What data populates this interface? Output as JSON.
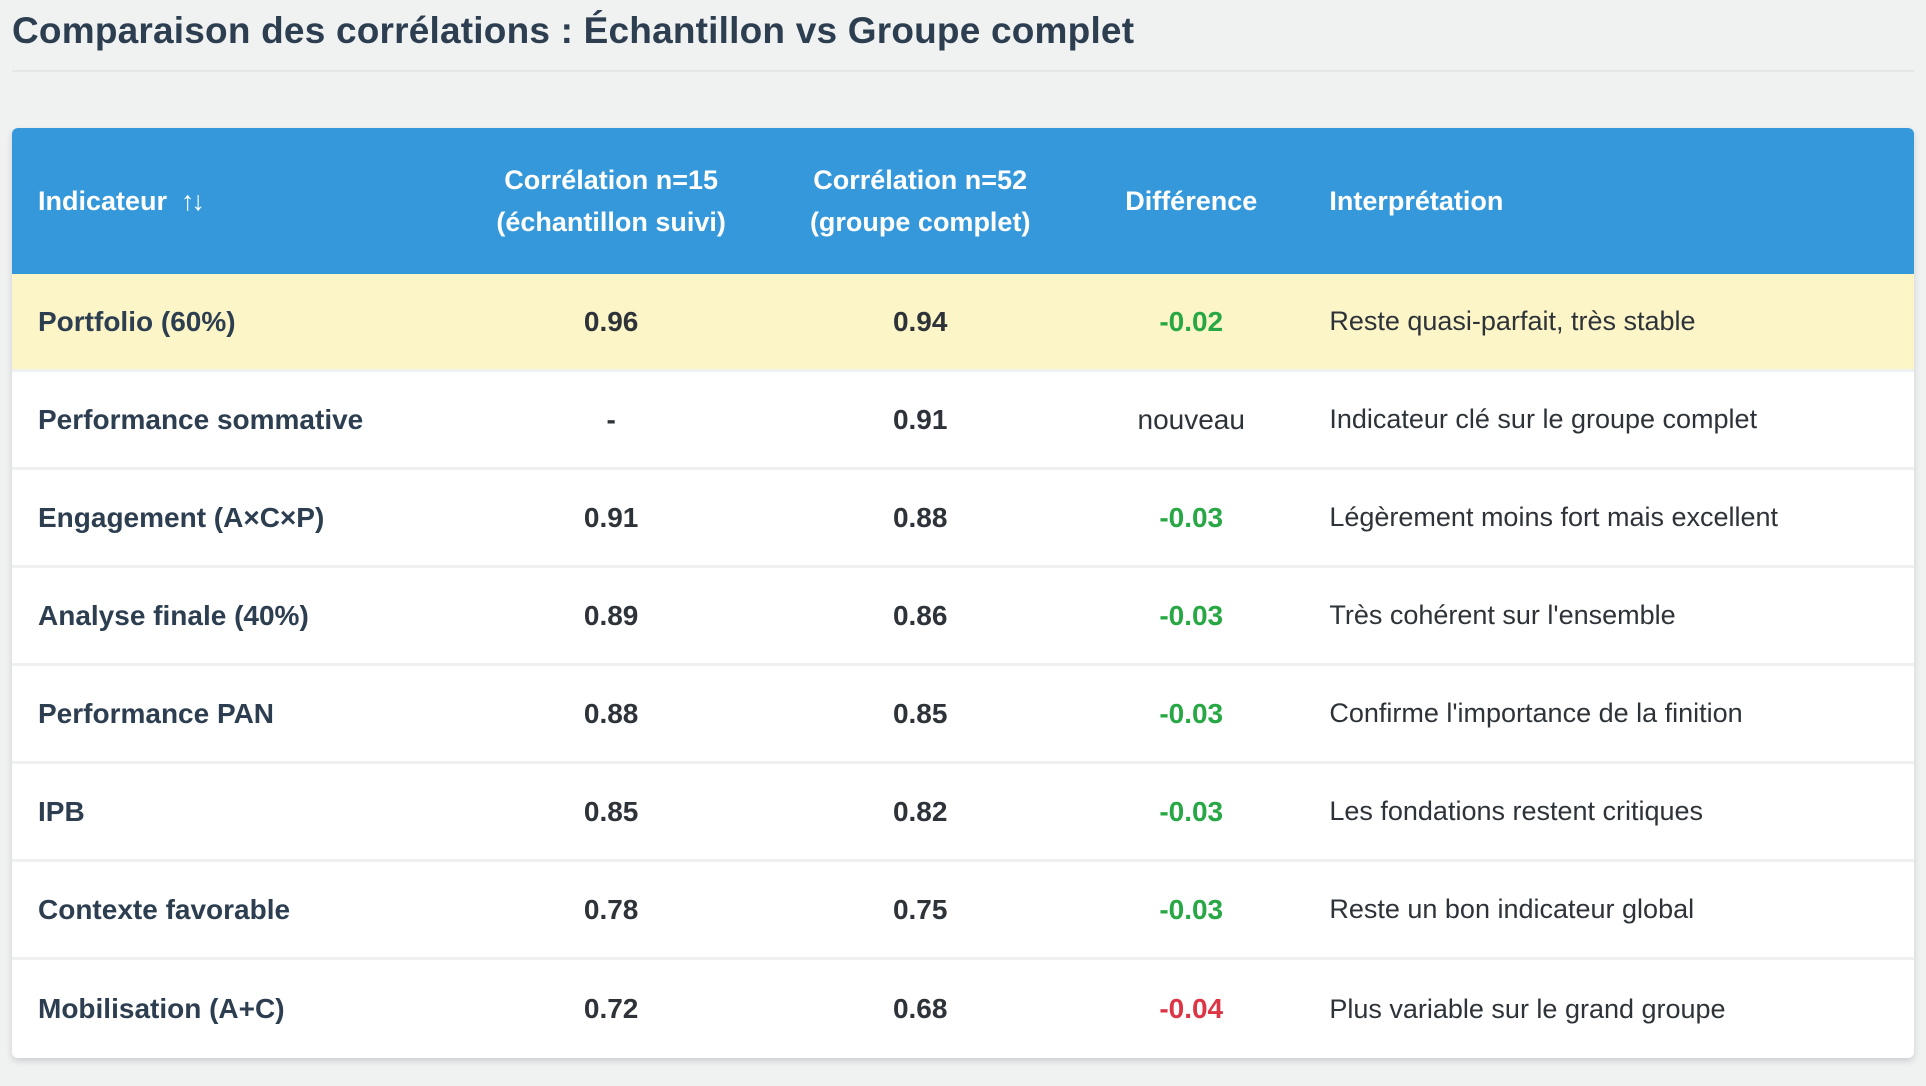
{
  "page": {
    "title": "Comparaison des corrélations : Échantillon vs Groupe complet"
  },
  "table": {
    "sort_icon": "↑↓",
    "columns": [
      {
        "label": "Indicateur"
      },
      {
        "label": "Corrélation n=15",
        "sublabel": "(échantillon suivi)"
      },
      {
        "label": "Corrélation n=52",
        "sublabel": "(groupe complet)"
      },
      {
        "label": "Différence"
      },
      {
        "label": "Interprétation"
      }
    ],
    "rows": [
      {
        "indicator": "Portfolio (60%)",
        "corr_n15": "0.96",
        "corr_n52": "0.94",
        "difference": "-0.02",
        "diff_type": "green",
        "interpretation": "Reste quasi-parfait, très stable",
        "highlighted": true
      },
      {
        "indicator": "Performance sommative",
        "corr_n15": "-",
        "corr_n52": "0.91",
        "difference": "nouveau",
        "diff_type": "neutral",
        "interpretation": "Indicateur clé sur le groupe complet",
        "highlighted": false
      },
      {
        "indicator": "Engagement (A×C×P)",
        "corr_n15": "0.91",
        "corr_n52": "0.88",
        "difference": "-0.03",
        "diff_type": "green",
        "interpretation": "Légèrement moins fort mais excellent",
        "highlighted": false
      },
      {
        "indicator": "Analyse finale (40%)",
        "corr_n15": "0.89",
        "corr_n52": "0.86",
        "difference": "-0.03",
        "diff_type": "green",
        "interpretation": "Très cohérent sur l'ensemble",
        "highlighted": false
      },
      {
        "indicator": "Performance PAN",
        "corr_n15": "0.88",
        "corr_n52": "0.85",
        "difference": "-0.03",
        "diff_type": "green",
        "interpretation": "Confirme l'importance de la finition",
        "highlighted": false
      },
      {
        "indicator": "IPB",
        "corr_n15": "0.85",
        "corr_n52": "0.82",
        "difference": "-0.03",
        "diff_type": "green",
        "interpretation": "Les fondations restent critiques",
        "highlighted": false
      },
      {
        "indicator": "Contexte favorable",
        "corr_n15": "0.78",
        "corr_n52": "0.75",
        "difference": "-0.03",
        "diff_type": "green",
        "interpretation": "Reste un bon indicateur global",
        "highlighted": false
      },
      {
        "indicator": "Mobilisation (A+C)",
        "corr_n15": "0.72",
        "corr_n52": "0.68",
        "difference": "-0.04",
        "diff_type": "red",
        "interpretation": "Plus variable sur le grand groupe",
        "highlighted": false
      }
    ]
  },
  "colors": {
    "header_blue": "#3498db",
    "highlight_yellow": "#fcf5c7",
    "diff_green": "#28a745",
    "diff_red": "#dc3545",
    "title_navy": "#2c3e50",
    "page_background": "#f0f2f2"
  }
}
